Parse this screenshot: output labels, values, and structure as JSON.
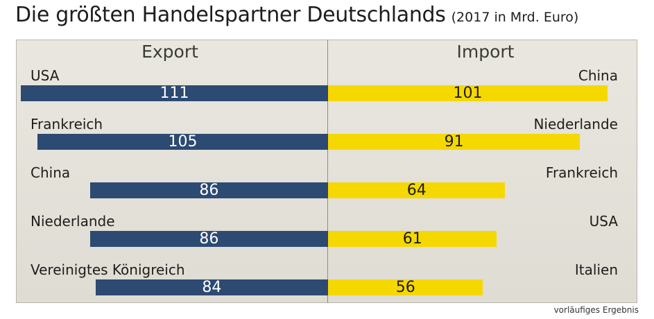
{
  "header": {
    "title": "Die größten Handelspartner Deutschlands",
    "subtitle": "(2017 in Mrd. Euro)"
  },
  "footnote": "vorläufiges Ergebnis",
  "colors": {
    "export": "#2c4a72",
    "import": "#f5d800",
    "panel": "#e4e2da"
  },
  "chart_data": [
    {
      "type": "bar",
      "title": "Export",
      "categories": [
        "USA",
        "Frankreich",
        "China",
        "Niederlande",
        "Vereinigtes Königreich"
      ],
      "values": [
        111,
        105,
        86,
        86,
        84
      ],
      "value_labels": [
        "111",
        "105",
        "86",
        "86",
        "84"
      ],
      "orientation": "horizontal",
      "direction": "right-to-left",
      "xlim": [
        0,
        111
      ]
    },
    {
      "type": "bar",
      "title": "Import",
      "categories": [
        "China",
        "Niederlande",
        "Frankreich",
        "USA",
        "Italien"
      ],
      "values": [
        101,
        91,
        64,
        61,
        56
      ],
      "value_labels": [
        "101",
        "91",
        "64",
        "61",
        "56"
      ],
      "orientation": "horizontal",
      "direction": "left-to-right",
      "xlim": [
        0,
        111
      ]
    }
  ]
}
